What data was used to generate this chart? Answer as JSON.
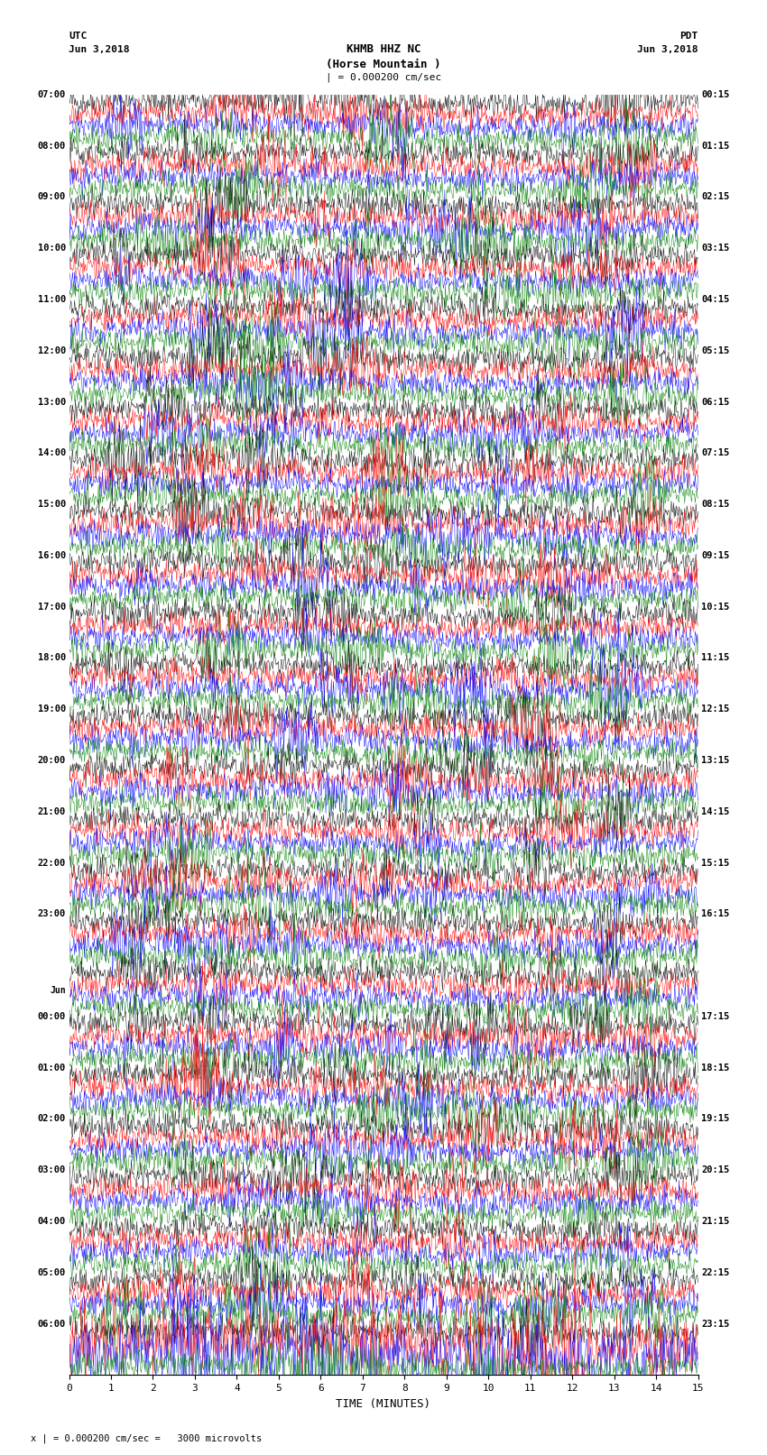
{
  "title_line1": "KHMB HHZ NC",
  "title_line2": "(Horse Mountain )",
  "title_line3": "| = 0.000200 cm/sec",
  "label_utc": "UTC",
  "label_pdt": "PDT",
  "date_left": "Jun 3,2018",
  "date_right": "Jun 3,2018",
  "xlabel": "TIME (MINUTES)",
  "footer": "x | = 0.000200 cm/sec =   3000 microvolts",
  "trace_colors": [
    "black",
    "red",
    "blue",
    "green"
  ],
  "hours_utc": [
    "07:00",
    "08:00",
    "09:00",
    "10:00",
    "11:00",
    "12:00",
    "13:00",
    "14:00",
    "15:00",
    "16:00",
    "17:00",
    "18:00",
    "19:00",
    "20:00",
    "21:00",
    "22:00",
    "23:00",
    "Jun",
    "00:00",
    "01:00",
    "02:00",
    "03:00",
    "04:00",
    "05:00",
    "06:00"
  ],
  "hours_pdt": [
    "00:15",
    "01:15",
    "02:15",
    "03:15",
    "04:15",
    "05:15",
    "06:15",
    "07:15",
    "08:15",
    "09:15",
    "10:15",
    "11:15",
    "12:15",
    "13:15",
    "14:15",
    "15:15",
    "16:15",
    "17:15",
    "18:15",
    "19:15",
    "20:15",
    "21:15",
    "22:15",
    "23:15"
  ],
  "n_rows": 25,
  "traces_per_row": 4,
  "xmin": 0,
  "xmax": 15,
  "xticks": [
    0,
    1,
    2,
    3,
    4,
    5,
    6,
    7,
    8,
    9,
    10,
    11,
    12,
    13,
    14,
    15
  ],
  "bg_color": "white",
  "fig_width": 8.5,
  "fig_height": 16.13,
  "dpi": 100
}
